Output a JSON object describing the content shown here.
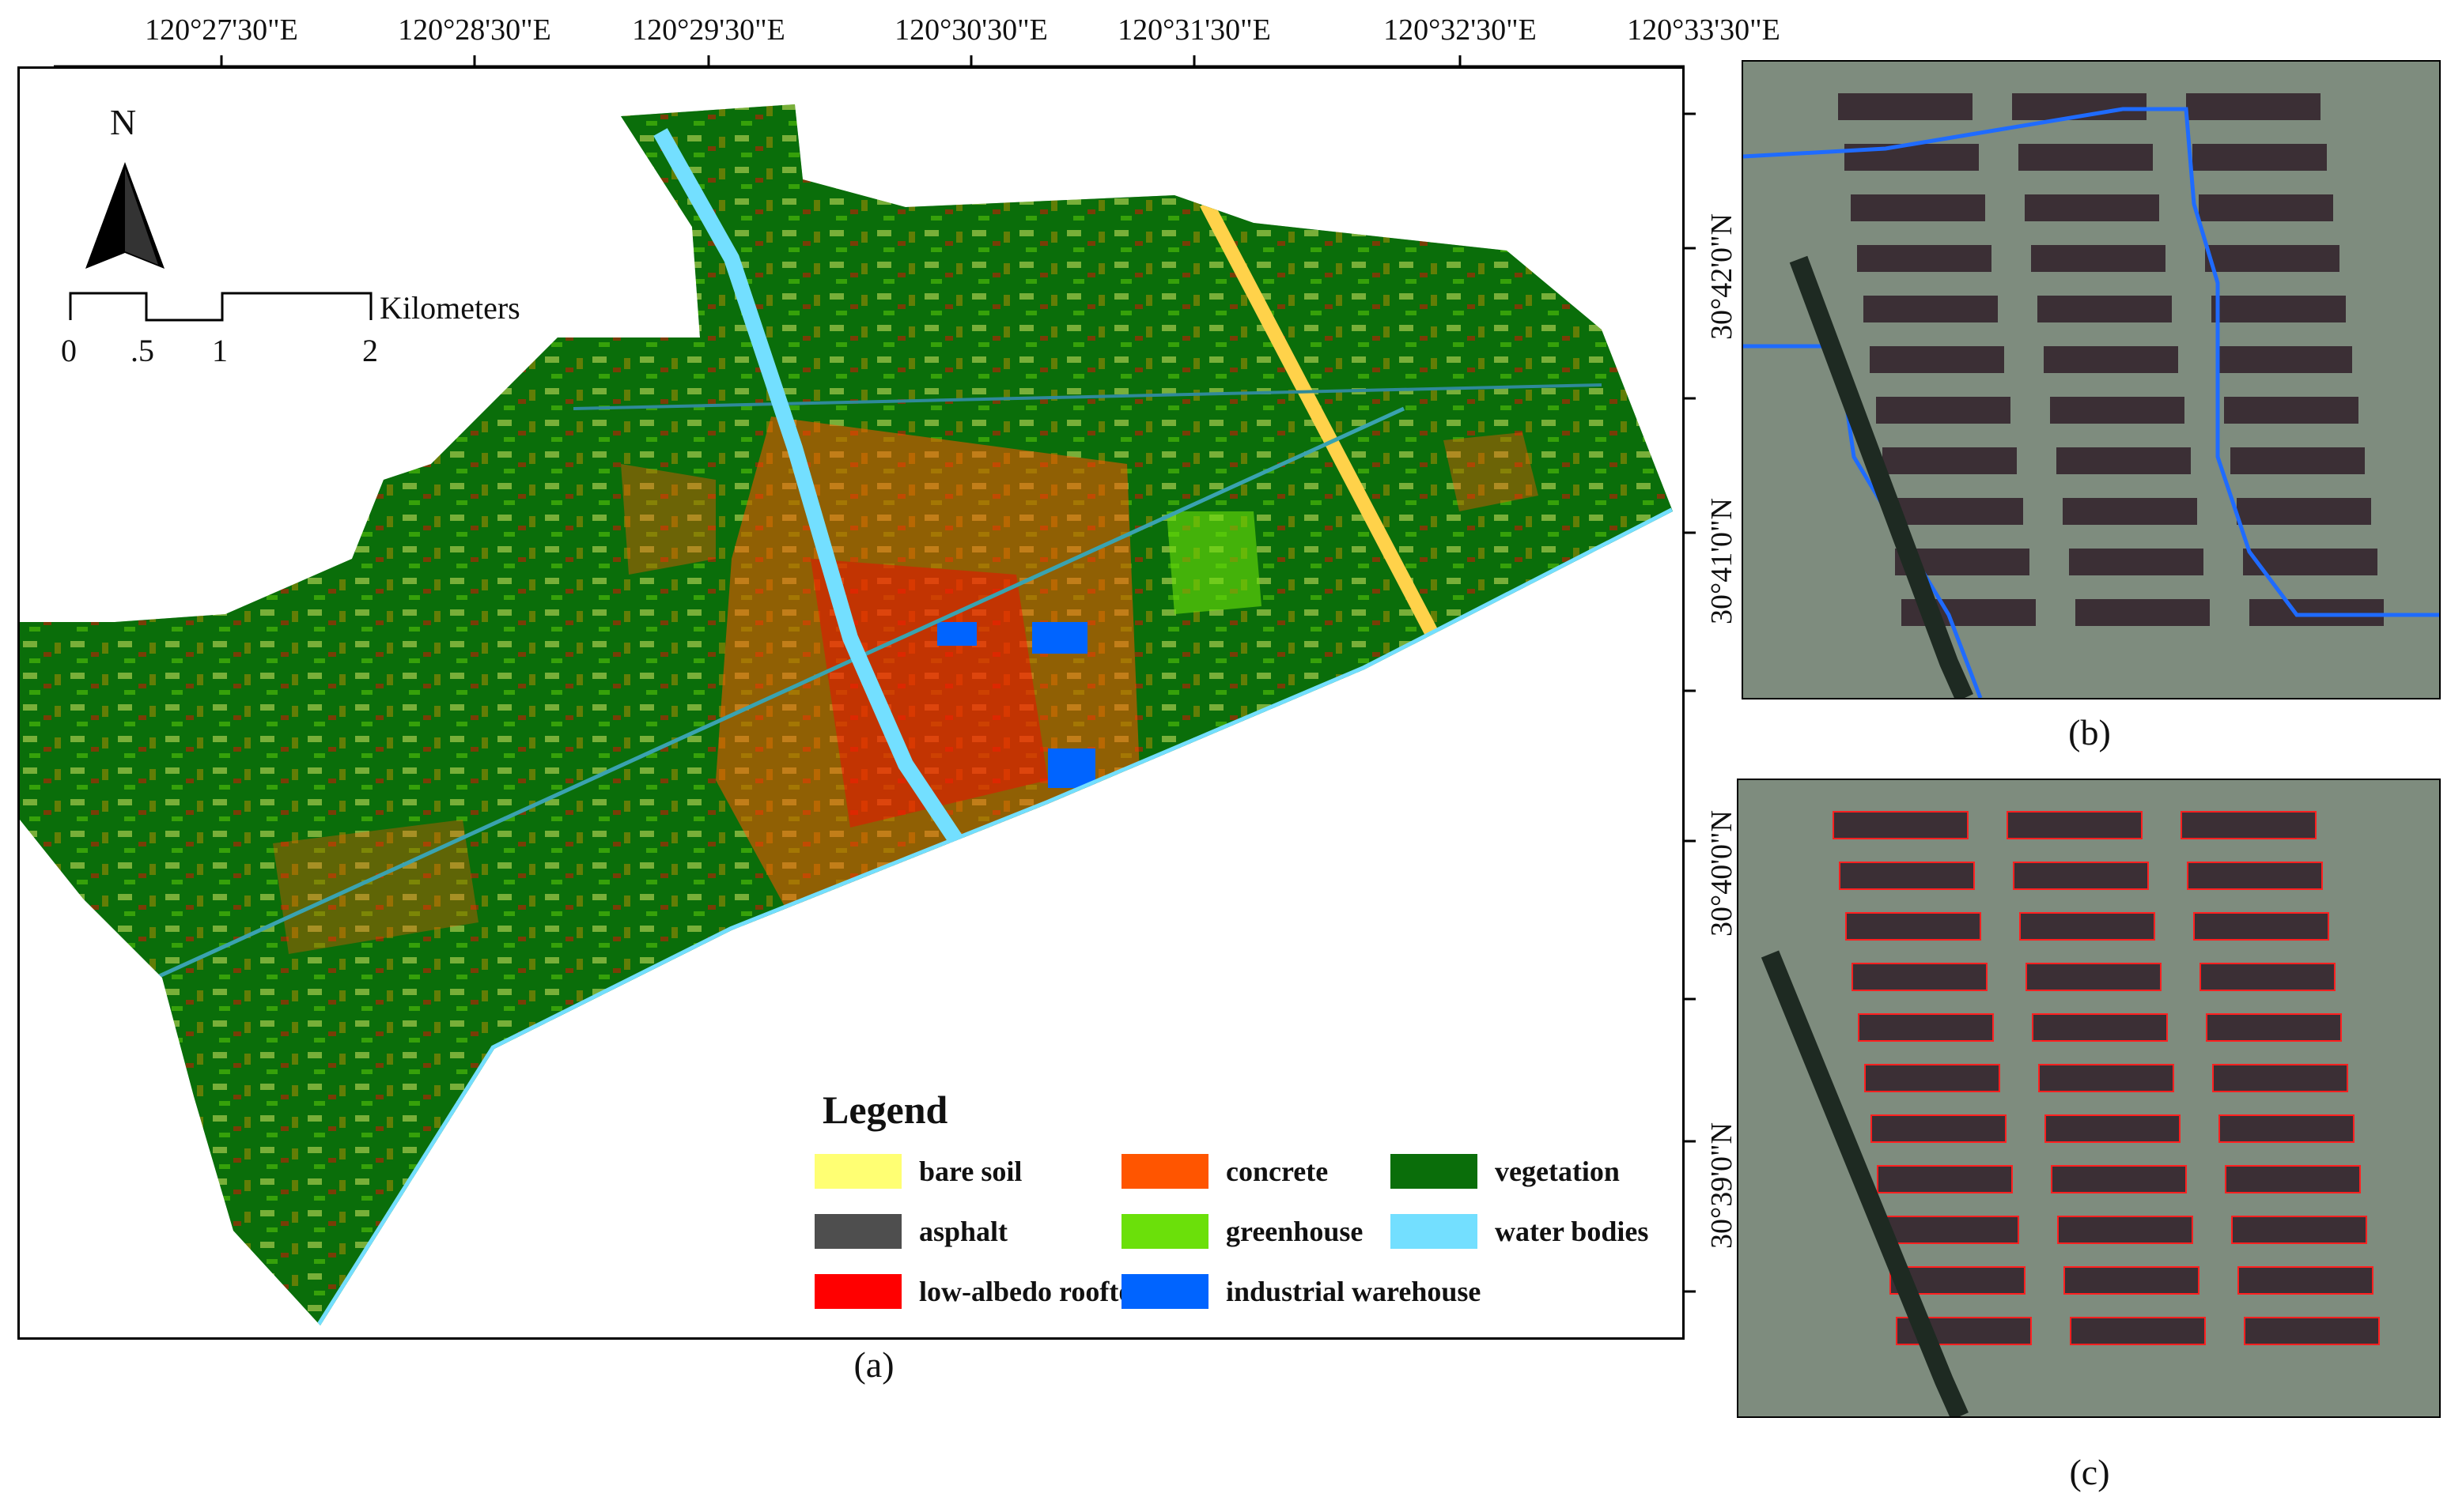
{
  "map": {
    "lon_ticks": [
      "120°27'30\"E",
      "120°28'30\"E",
      "120°29'30\"E",
      "120°30'30\"E",
      "120°31'30\"E",
      "120°32'30\"E",
      "120°33'30\"E"
    ],
    "lat_ticks": [
      "30°42'0\"N",
      "30°41'0\"N",
      "30°40'0\"N",
      "30°39'0\"N"
    ],
    "north_label": "N",
    "scale_bar": {
      "unit": "Kilometers",
      "labels": [
        "0",
        ".5",
        "1",
        "2"
      ]
    },
    "caption": "(a)"
  },
  "legend": {
    "title": "Legend",
    "items": [
      {
        "label": "bare soil",
        "color": "#ffff73"
      },
      {
        "label": "concrete",
        "color": "#ff5500"
      },
      {
        "label": "vegetation",
        "color": "#0a6e0a"
      },
      {
        "label": "asphalt",
        "color": "#4e4e4e"
      },
      {
        "label": "greenhouse",
        "color": "#6be00a"
      },
      {
        "label": "water bodies",
        "color": "#73dfff"
      },
      {
        "label": "low-albedo rooftops",
        "color": "#ff0000"
      },
      {
        "label": "industrial warehouse",
        "color": "#0064ff"
      }
    ]
  },
  "panels": {
    "b": {
      "caption": "(b)",
      "outline_color": "#1f6bff"
    },
    "c": {
      "caption": "(c)",
      "outline_color": "#ff2020"
    }
  }
}
